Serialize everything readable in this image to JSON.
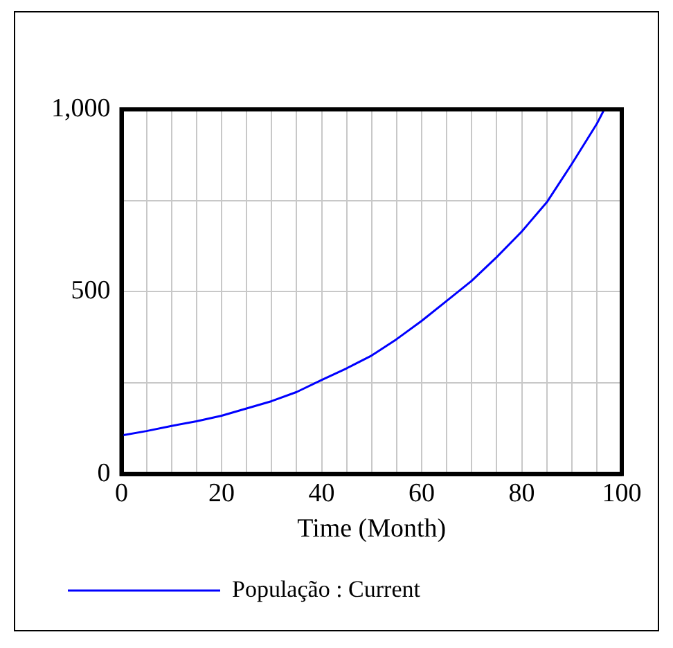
{
  "chart_data": {
    "type": "line",
    "xlabel": "Time (Month)",
    "x": [
      0,
      5,
      10,
      15,
      20,
      25,
      30,
      35,
      40,
      45,
      50,
      55,
      60,
      65,
      70,
      75,
      80,
      85,
      90,
      95,
      96.5
    ],
    "series": [
      {
        "name": "População : Current",
        "color": "#0000ff",
        "values": [
          106,
          118,
          132,
          145,
          160,
          180,
          200,
          225,
          258,
          290,
          325,
          370,
          420,
          475,
          530,
          595,
          665,
          745,
          850,
          960,
          1000
        ]
      }
    ],
    "xlim": [
      0,
      100
    ],
    "xticks": [
      0,
      {
        "value": 5,
        "label": null
      },
      20,
      {
        "value": 10,
        "label": null
      },
      {
        "value": 15,
        "label": null
      },
      {
        "value": 25,
        "label": null
      },
      {
        "value": 30,
        "label": null
      },
      {
        "value": 35,
        "label": null
      },
      40,
      {
        "value": 45,
        "label": null
      },
      {
        "value": 50,
        "label": null
      },
      {
        "value": 55,
        "label": null
      },
      60,
      {
        "value": 65,
        "label": null
      },
      {
        "value": 70,
        "label": null
      },
      {
        "value": 75,
        "label": null
      },
      80,
      {
        "value": 85,
        "label": null
      },
      {
        "value": 90,
        "label": null
      },
      {
        "value": 95,
        "label": null
      },
      100
    ],
    "ylim": [
      0,
      1000
    ],
    "yticks": [
      0,
      {
        "value": 250,
        "label": null
      },
      500,
      {
        "value": 750,
        "label": null
      },
      {
        "value": 1000,
        "label": "1,000"
      }
    ],
    "grid": true,
    "legend": "bottom",
    "marker": "none",
    "line_style": "solid"
  }
}
